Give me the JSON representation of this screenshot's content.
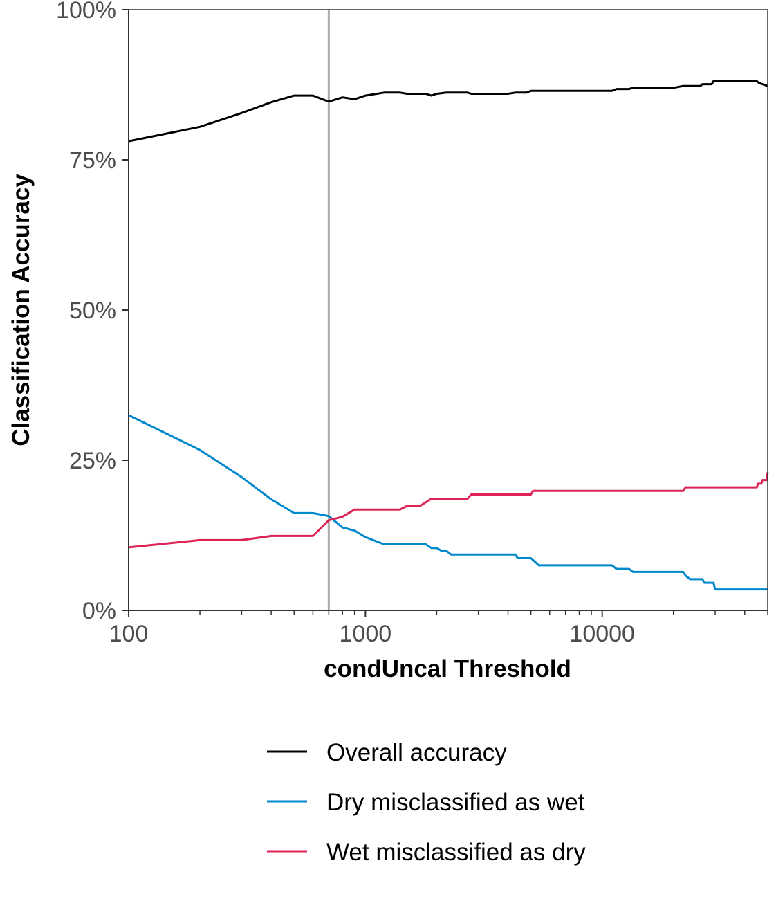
{
  "chart_data": {
    "type": "line",
    "title": "",
    "xlabel": "condUncal Threshold",
    "ylabel": "Classification Accuracy",
    "x_scale": "log",
    "xlim": [
      100,
      50000
    ],
    "ylim": [
      0,
      1
    ],
    "x_ticks": [
      {
        "value": 100,
        "label": "100"
      },
      {
        "value": 1000,
        "label": "1000"
      },
      {
        "value": 10000,
        "label": "10000"
      }
    ],
    "y_ticks": [
      {
        "value": 0,
        "label": "0%"
      },
      {
        "value": 0.25,
        "label": "25%"
      },
      {
        "value": 0.5,
        "label": "50%"
      },
      {
        "value": 0.75,
        "label": "75%"
      },
      {
        "value": 1,
        "label": "100%"
      }
    ],
    "reference_line": {
      "x": 700,
      "color": "#aaaaaa"
    },
    "grid": false,
    "legend_position": "bottom",
    "series": [
      {
        "name": "Overall accuracy",
        "color": "#000000",
        "points": [
          [
            100,
            0.781
          ],
          [
            200,
            0.805
          ],
          [
            300,
            0.828
          ],
          [
            400,
            0.846
          ],
          [
            500,
            0.857
          ],
          [
            600,
            0.857
          ],
          [
            700,
            0.847
          ],
          [
            800,
            0.854
          ],
          [
            900,
            0.851
          ],
          [
            1000,
            0.857
          ],
          [
            1200,
            0.862
          ],
          [
            1400,
            0.862
          ],
          [
            1500,
            0.86
          ],
          [
            1800,
            0.86
          ],
          [
            1900,
            0.857
          ],
          [
            2000,
            0.86
          ],
          [
            2200,
            0.862
          ],
          [
            2700,
            0.862
          ],
          [
            2800,
            0.86
          ],
          [
            4000,
            0.86
          ],
          [
            4300,
            0.862
          ],
          [
            4800,
            0.862
          ],
          [
            5000,
            0.865
          ],
          [
            5200,
            0.865
          ],
          [
            8000,
            0.865
          ],
          [
            11000,
            0.865
          ],
          [
            11500,
            0.868
          ],
          [
            13000,
            0.868
          ],
          [
            13500,
            0.87
          ],
          [
            20000,
            0.87
          ],
          [
            22000,
            0.873
          ],
          [
            26000,
            0.873
          ],
          [
            26500,
            0.876
          ],
          [
            29000,
            0.876
          ],
          [
            29500,
            0.881
          ],
          [
            45000,
            0.881
          ],
          [
            46000,
            0.878
          ],
          [
            50000,
            0.873
          ]
        ]
      },
      {
        "name": "Dry misclassified as wet",
        "color": "#0088cc",
        "points": [
          [
            100,
            0.325
          ],
          [
            200,
            0.267
          ],
          [
            300,
            0.222
          ],
          [
            400,
            0.185
          ],
          [
            500,
            0.162
          ],
          [
            600,
            0.162
          ],
          [
            700,
            0.157
          ],
          [
            800,
            0.138
          ],
          [
            900,
            0.133
          ],
          [
            1000,
            0.122
          ],
          [
            1200,
            0.11
          ],
          [
            1800,
            0.11
          ],
          [
            1900,
            0.104
          ],
          [
            2000,
            0.104
          ],
          [
            2100,
            0.099
          ],
          [
            2200,
            0.099
          ],
          [
            2300,
            0.093
          ],
          [
            4300,
            0.093
          ],
          [
            4400,
            0.087
          ],
          [
            5000,
            0.087
          ],
          [
            5200,
            0.081
          ],
          [
            5400,
            0.075
          ],
          [
            11000,
            0.075
          ],
          [
            11500,
            0.069
          ],
          [
            13000,
            0.069
          ],
          [
            13500,
            0.064
          ],
          [
            22000,
            0.064
          ],
          [
            22500,
            0.058
          ],
          [
            23500,
            0.052
          ],
          [
            26500,
            0.052
          ],
          [
            27000,
            0.046
          ],
          [
            29500,
            0.046
          ],
          [
            30000,
            0.035
          ],
          [
            50000,
            0.035
          ]
        ]
      },
      {
        "name": "Wet misclassified as dry",
        "color": "#dd2255",
        "points": [
          [
            100,
            0.105
          ],
          [
            200,
            0.117
          ],
          [
            300,
            0.117
          ],
          [
            400,
            0.124
          ],
          [
            600,
            0.124
          ],
          [
            700,
            0.15
          ],
          [
            800,
            0.156
          ],
          [
            900,
            0.168
          ],
          [
            1400,
            0.168
          ],
          [
            1500,
            0.174
          ],
          [
            1700,
            0.174
          ],
          [
            1900,
            0.186
          ],
          [
            2700,
            0.186
          ],
          [
            2800,
            0.193
          ],
          [
            5000,
            0.193
          ],
          [
            5100,
            0.199
          ],
          [
            22000,
            0.199
          ],
          [
            22500,
            0.205
          ],
          [
            45000,
            0.205
          ],
          [
            45500,
            0.211
          ],
          [
            47000,
            0.211
          ],
          [
            47500,
            0.217
          ],
          [
            49500,
            0.217
          ],
          [
            50000,
            0.23
          ]
        ]
      }
    ]
  }
}
